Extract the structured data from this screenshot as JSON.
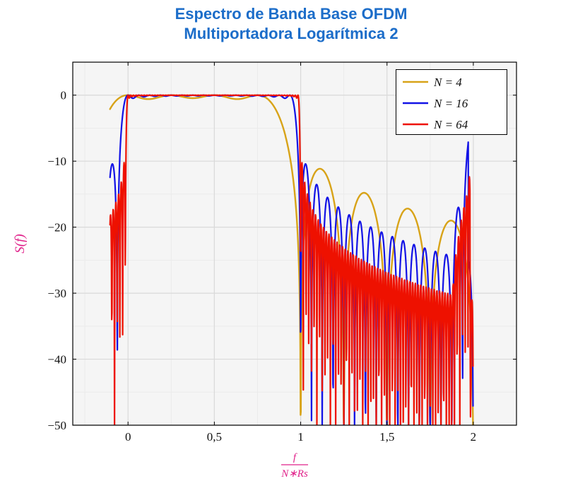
{
  "title": {
    "line1": "Espectro de Banda Base OFDM",
    "line2": "Multiportadora Logarítmica 2"
  },
  "colors": {
    "title": "#1c6dc9",
    "axis_label": "#e0218a",
    "tick_text": "#111111",
    "plot_bg": "#f5f5f5",
    "grid_major": "#d9d9d9",
    "grid_minor": "#ebebeb",
    "frame": "#000000"
  },
  "chart_data": {
    "type": "line",
    "title": "Espectro de Banda Base OFDM Multiportadora Logarítmica 2",
    "ylabel": "S(f)",
    "xlabel": "f / (N∗Rs)",
    "xlabel_numerator": "f",
    "xlabel_denominator": "N∗Rs",
    "xlim": [
      -0.32,
      2.25
    ],
    "ylim": [
      -50,
      5
    ],
    "x_ticks": [
      {
        "v": 0,
        "label": "0"
      },
      {
        "v": 0.5,
        "label": "0,5"
      },
      {
        "v": 1,
        "label": "1"
      },
      {
        "v": 1.5,
        "label": "1,5"
      },
      {
        "v": 2,
        "label": "2"
      }
    ],
    "y_ticks": [
      {
        "v": 0,
        "label": "0"
      },
      {
        "v": -10,
        "label": "−10"
      },
      {
        "v": -20,
        "label": "−20"
      },
      {
        "v": -30,
        "label": "−30"
      },
      {
        "v": -40,
        "label": "−40"
      },
      {
        "v": -50,
        "label": "−50"
      }
    ],
    "x_minor_step": 0.25,
    "y_minor_step": 5,
    "grid": "both",
    "legend_position": "top-right",
    "clip_floor_db": -50,
    "sample_step": 0.00163,
    "model_note": "Normalized OFDM baseband power spectrum S(x)=10*log10(sum_{k=0}^{N-1} sinc^2(N*x-k)), x=f/(N*Rs); flat ~0 dB band over [0,1], sidelobes with nulls every 1/N beyond the band; spectral replica leakage spike near x=2 for N=16 (peak ~-8 dB) and N=64 (peak ~-13 dB); all curves plunge below -50 dB at x=2",
    "series": [
      {
        "label": "N = 4",
        "N": 4,
        "color": "#d8a318",
        "width": 2.4,
        "x_start": -0.1043,
        "x_end": 1.9995,
        "replica": false
      },
      {
        "label": "N = 16",
        "N": 16,
        "color": "#1212e6",
        "width": 2.2,
        "x_start": -0.1043,
        "x_end": 1.9995,
        "replica": true,
        "replica_from": 1.88,
        "replica_cutoff": 1.972,
        "replica_gain": 0.35
      },
      {
        "label": "N = 64",
        "N": 64,
        "color": "#ee1100",
        "width": 2.2,
        "x_start": -0.1043,
        "x_end": 1.9995,
        "replica": true,
        "replica_from": 1.88,
        "replica_cutoff": 1.982,
        "replica_gain": 0.6
      }
    ]
  }
}
